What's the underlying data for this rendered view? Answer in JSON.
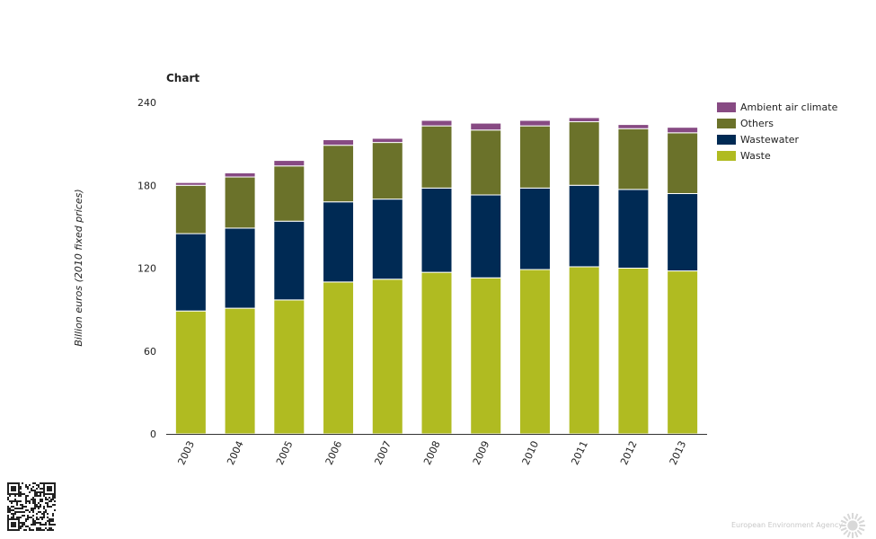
{
  "footer": {
    "agency_name": "European Environment Agency"
  },
  "chart_data": {
    "type": "bar",
    "stacked": true,
    "title": "Chart",
    "xlabel": "",
    "ylabel": "Billion euros (2010 fixed prices)",
    "ylim": [
      0,
      240
    ],
    "yticks": [
      0,
      60,
      120,
      180,
      240
    ],
    "legend_position": "top-right",
    "grid": false,
    "categories": [
      "2003",
      "2004",
      "2005",
      "2006",
      "2007",
      "2008",
      "2009",
      "2010",
      "2011",
      "2012",
      "2013"
    ],
    "series": [
      {
        "name": "Waste",
        "color": "#b0bb21",
        "values": [
          89,
          91,
          97,
          110,
          112,
          117,
          113,
          119,
          121,
          120,
          118
        ]
      },
      {
        "name": "Wastewater",
        "color": "#002a54",
        "values": [
          56,
          58,
          57,
          58,
          58,
          61,
          60,
          59,
          59,
          57,
          56
        ]
      },
      {
        "name": "Others",
        "color": "#6b722a",
        "values": [
          35,
          37,
          40,
          41,
          41,
          45,
          47,
          45,
          46,
          44,
          44
        ]
      },
      {
        "name": "Ambient air climate",
        "color": "#874a83",
        "values": [
          2,
          3,
          4,
          4,
          3,
          4,
          5,
          4,
          3,
          3,
          4
        ]
      }
    ]
  }
}
